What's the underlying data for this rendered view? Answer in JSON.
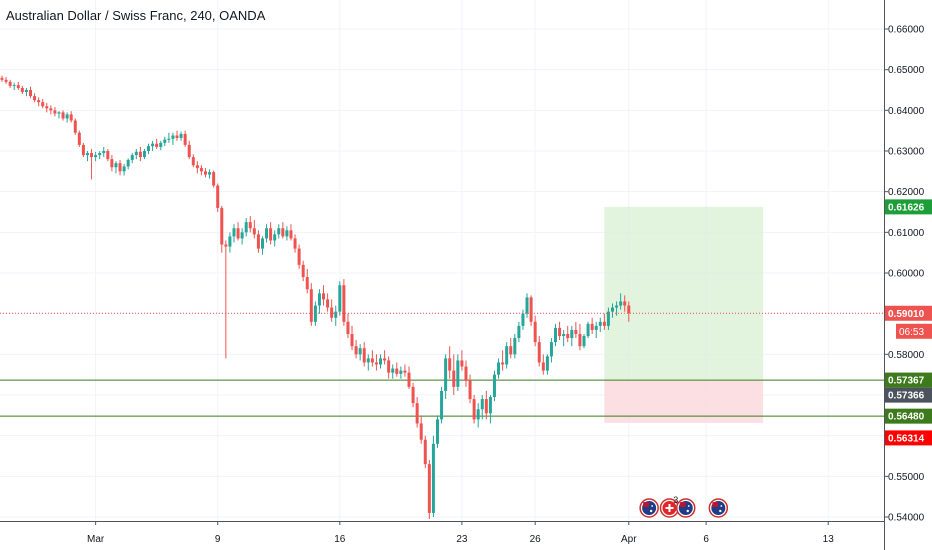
{
  "header": {
    "title": "Australian Dollar / Swiss Franc, 240, OANDA"
  },
  "colors": {
    "up": "#26a69a",
    "down": "#ef5350",
    "grid": "#f0f3fa",
    "axis_line": "#50535e",
    "last_price": "#ef5350",
    "target_tag": "#1e9e38",
    "stop_tag": "#ff0000",
    "level_line": "#3a7d1c",
    "level_tag": "#3d7a1c",
    "entry_tag": "#4c525e",
    "profit_zone": "#d8f0d3",
    "loss_zone": "#fbd9dd"
  },
  "chart_data": {
    "type": "candlestick",
    "title": "Australian Dollar / Swiss Franc, 240, OANDA",
    "symbol": "AUDCHF",
    "interval": "240",
    "source": "OANDA",
    "grid": true,
    "y_axis": {
      "position": "right",
      "range": [
        0.5395,
        0.6675
      ],
      "ticks": [
        "0.66000",
        "0.65000",
        "0.64000",
        "0.63000",
        "0.62000",
        "0.61000",
        "0.60000",
        "0.59000",
        "0.58000",
        "0.57000",
        "0.56000",
        "0.55000",
        "0.54000"
      ]
    },
    "x_axis": {
      "ticks": [
        {
          "label": "Mar",
          "bar": 23
        },
        {
          "label": "9",
          "bar": 53
        },
        {
          "label": "16",
          "bar": 83
        },
        {
          "label": "23",
          "bar": 113
        },
        {
          "label": "26",
          "bar": 131
        },
        {
          "label": "Apr",
          "bar": 154
        },
        {
          "label": "6",
          "bar": 173
        },
        {
          "label": "13",
          "bar": 203
        }
      ],
      "bar_count_visible": 226
    },
    "candles": [
      [
        0.648,
        0.6485,
        0.647,
        0.6475
      ],
      [
        0.6475,
        0.6482,
        0.6465,
        0.647
      ],
      [
        0.647,
        0.6475,
        0.6455,
        0.646
      ],
      [
        0.646,
        0.6468,
        0.645,
        0.6462
      ],
      [
        0.6462,
        0.647,
        0.645,
        0.6455
      ],
      [
        0.6455,
        0.646,
        0.644,
        0.6445
      ],
      [
        0.6445,
        0.6455,
        0.6435,
        0.645
      ],
      [
        0.645,
        0.6458,
        0.643,
        0.6435
      ],
      [
        0.6435,
        0.6442,
        0.642,
        0.6425
      ],
      [
        0.6425,
        0.6432,
        0.641,
        0.642
      ],
      [
        0.642,
        0.6428,
        0.6405,
        0.641
      ],
      [
        0.641,
        0.6418,
        0.6395,
        0.6405
      ],
      [
        0.6405,
        0.6412,
        0.639,
        0.64
      ],
      [
        0.64,
        0.6408,
        0.6385,
        0.6392
      ],
      [
        0.6392,
        0.6398,
        0.638,
        0.6395
      ],
      [
        0.6395,
        0.64,
        0.6375,
        0.638
      ],
      [
        0.638,
        0.6395,
        0.637,
        0.639
      ],
      [
        0.639,
        0.6398,
        0.637,
        0.6375
      ],
      [
        0.6375,
        0.638,
        0.634,
        0.6345
      ],
      [
        0.6345,
        0.635,
        0.631,
        0.6315
      ],
      [
        0.6315,
        0.632,
        0.6285,
        0.629
      ],
      [
        0.629,
        0.63,
        0.6275,
        0.6295
      ],
      [
        0.6295,
        0.6305,
        0.623,
        0.6285
      ],
      [
        0.6285,
        0.6298,
        0.6275,
        0.629
      ],
      [
        0.629,
        0.63,
        0.628,
        0.6295
      ],
      [
        0.6295,
        0.631,
        0.6285,
        0.63
      ],
      [
        0.63,
        0.6305,
        0.6275,
        0.628
      ],
      [
        0.628,
        0.629,
        0.625,
        0.626
      ],
      [
        0.626,
        0.6275,
        0.6245,
        0.627
      ],
      [
        0.627,
        0.6278,
        0.624,
        0.625
      ],
      [
        0.625,
        0.6268,
        0.624,
        0.6262
      ],
      [
        0.6262,
        0.6282,
        0.6255,
        0.6278
      ],
      [
        0.6278,
        0.6295,
        0.627,
        0.629
      ],
      [
        0.629,
        0.6305,
        0.628,
        0.6298
      ],
      [
        0.6298,
        0.631,
        0.6275,
        0.6285
      ],
      [
        0.6285,
        0.6305,
        0.628,
        0.63
      ],
      [
        0.63,
        0.6318,
        0.6292,
        0.6312
      ],
      [
        0.6312,
        0.6325,
        0.63,
        0.6318
      ],
      [
        0.6318,
        0.633,
        0.6305,
        0.631
      ],
      [
        0.631,
        0.6325,
        0.6302,
        0.632
      ],
      [
        0.632,
        0.6335,
        0.6312,
        0.6328
      ],
      [
        0.6328,
        0.6345,
        0.632,
        0.633
      ],
      [
        0.633,
        0.6345,
        0.6315,
        0.6338
      ],
      [
        0.6338,
        0.635,
        0.6325,
        0.6332
      ],
      [
        0.6332,
        0.6348,
        0.6325,
        0.6342
      ],
      [
        0.6342,
        0.635,
        0.631,
        0.6315
      ],
      [
        0.6315,
        0.6325,
        0.628,
        0.6285
      ],
      [
        0.6285,
        0.6292,
        0.626,
        0.6265
      ],
      [
        0.6265,
        0.6275,
        0.6245,
        0.6258
      ],
      [
        0.6258,
        0.6265,
        0.624,
        0.625
      ],
      [
        0.625,
        0.6258,
        0.6235,
        0.6242
      ],
      [
        0.6242,
        0.6255,
        0.6232,
        0.6248
      ],
      [
        0.6248,
        0.6252,
        0.621,
        0.6215
      ],
      [
        0.6215,
        0.622,
        0.615,
        0.616
      ],
      [
        0.616,
        0.6165,
        0.605,
        0.607
      ],
      [
        0.607,
        0.608,
        0.579,
        0.6065
      ],
      [
        0.6065,
        0.61,
        0.605,
        0.609
      ],
      [
        0.609,
        0.612,
        0.6075,
        0.611
      ],
      [
        0.611,
        0.6125,
        0.608,
        0.6085
      ],
      [
        0.6085,
        0.611,
        0.607,
        0.61
      ],
      [
        0.61,
        0.6135,
        0.609,
        0.6125
      ],
      [
        0.6125,
        0.614,
        0.61,
        0.611
      ],
      [
        0.611,
        0.613,
        0.6085,
        0.6095
      ],
      [
        0.6095,
        0.6105,
        0.605,
        0.606
      ],
      [
        0.606,
        0.609,
        0.6045,
        0.6085
      ],
      [
        0.6085,
        0.612,
        0.6075,
        0.611
      ],
      [
        0.611,
        0.6125,
        0.607,
        0.608
      ],
      [
        0.608,
        0.6105,
        0.6065,
        0.6095
      ],
      [
        0.6095,
        0.612,
        0.6085,
        0.611
      ],
      [
        0.611,
        0.6125,
        0.6085,
        0.609
      ],
      [
        0.609,
        0.6115,
        0.608,
        0.6105
      ],
      [
        0.6105,
        0.612,
        0.608,
        0.6085
      ],
      [
        0.6085,
        0.6095,
        0.605,
        0.606
      ],
      [
        0.606,
        0.607,
        0.601,
        0.602
      ],
      [
        0.602,
        0.603,
        0.598,
        0.599
      ],
      [
        0.599,
        0.601,
        0.595,
        0.596
      ],
      [
        0.596,
        0.5975,
        0.587,
        0.588
      ],
      [
        0.588,
        0.593,
        0.587,
        0.592
      ],
      [
        0.592,
        0.596,
        0.59,
        0.595
      ],
      [
        0.595,
        0.597,
        0.592,
        0.5935
      ],
      [
        0.5935,
        0.595,
        0.5905,
        0.5915
      ],
      [
        0.5915,
        0.5935,
        0.588,
        0.589
      ],
      [
        0.589,
        0.592,
        0.587,
        0.5905
      ],
      [
        0.5905,
        0.598,
        0.5895,
        0.597
      ],
      [
        0.597,
        0.5985,
        0.587,
        0.588
      ],
      [
        0.588,
        0.59,
        0.584,
        0.585
      ],
      [
        0.585,
        0.587,
        0.581,
        0.582
      ],
      [
        0.582,
        0.5835,
        0.579,
        0.58
      ],
      [
        0.58,
        0.5825,
        0.5785,
        0.5815
      ],
      [
        0.5815,
        0.583,
        0.577,
        0.578
      ],
      [
        0.578,
        0.58,
        0.576,
        0.579
      ],
      [
        0.579,
        0.581,
        0.577,
        0.578
      ],
      [
        0.578,
        0.58,
        0.576,
        0.5775
      ],
      [
        0.5775,
        0.58,
        0.5765,
        0.579
      ],
      [
        0.579,
        0.581,
        0.5775,
        0.5785
      ],
      [
        0.5785,
        0.5795,
        0.574,
        0.5755
      ],
      [
        0.5755,
        0.5775,
        0.574,
        0.5765
      ],
      [
        0.5765,
        0.578,
        0.5745,
        0.5752
      ],
      [
        0.5752,
        0.577,
        0.574,
        0.576
      ],
      [
        0.576,
        0.5775,
        0.5745,
        0.5755
      ],
      [
        0.5755,
        0.577,
        0.5715,
        0.572
      ],
      [
        0.572,
        0.573,
        0.567,
        0.568
      ],
      [
        0.568,
        0.5695,
        0.562,
        0.563
      ],
      [
        0.563,
        0.565,
        0.558,
        0.559
      ],
      [
        0.559,
        0.56,
        0.552,
        0.553
      ],
      [
        0.553,
        0.554,
        0.5395,
        0.541
      ],
      [
        0.541,
        0.56,
        0.54,
        0.558
      ],
      [
        0.558,
        0.565,
        0.557,
        0.564
      ],
      [
        0.564,
        0.572,
        0.563,
        0.571
      ],
      [
        0.571,
        0.58,
        0.569,
        0.579
      ],
      [
        0.579,
        0.582,
        0.574,
        0.576
      ],
      [
        0.576,
        0.58,
        0.57,
        0.572
      ],
      [
        0.572,
        0.58,
        0.571,
        0.5785
      ],
      [
        0.5785,
        0.581,
        0.576,
        0.577
      ],
      [
        0.577,
        0.5785,
        0.572,
        0.5735
      ],
      [
        0.5735,
        0.575,
        0.568,
        0.569
      ],
      [
        0.569,
        0.57,
        0.563,
        0.564
      ],
      [
        0.564,
        0.568,
        0.562,
        0.5665
      ],
      [
        0.5665,
        0.57,
        0.564,
        0.569
      ],
      [
        0.569,
        0.571,
        0.564,
        0.5655
      ],
      [
        0.5655,
        0.57,
        0.563,
        0.5695
      ],
      [
        0.5695,
        0.576,
        0.5685,
        0.575
      ],
      [
        0.575,
        0.579,
        0.574,
        0.578
      ],
      [
        0.578,
        0.581,
        0.576,
        0.5775
      ],
      [
        0.5775,
        0.583,
        0.5765,
        0.582
      ],
      [
        0.582,
        0.584,
        0.579,
        0.58
      ],
      [
        0.58,
        0.585,
        0.579,
        0.584
      ],
      [
        0.584,
        0.588,
        0.583,
        0.587
      ],
      [
        0.587,
        0.591,
        0.586,
        0.59
      ],
      [
        0.59,
        0.595,
        0.589,
        0.594
      ],
      [
        0.594,
        0.5945,
        0.587,
        0.588
      ],
      [
        0.588,
        0.5895,
        0.582,
        0.583
      ],
      [
        0.583,
        0.5845,
        0.577,
        0.578
      ],
      [
        0.578,
        0.58,
        0.575,
        0.576
      ],
      [
        0.576,
        0.58,
        0.575,
        0.5795
      ],
      [
        0.5795,
        0.584,
        0.578,
        0.583
      ],
      [
        0.583,
        0.5875,
        0.582,
        0.5865
      ],
      [
        0.5865,
        0.588,
        0.5835,
        0.5845
      ],
      [
        0.5845,
        0.586,
        0.582,
        0.585
      ],
      [
        0.585,
        0.587,
        0.583,
        0.584
      ],
      [
        0.584,
        0.587,
        0.582,
        0.586
      ],
      [
        0.586,
        0.588,
        0.584,
        0.585
      ],
      [
        0.585,
        0.5875,
        0.581,
        0.582
      ],
      [
        0.582,
        0.585,
        0.5815,
        0.5845
      ],
      [
        0.5845,
        0.588,
        0.584,
        0.5875
      ],
      [
        0.5875,
        0.589,
        0.585,
        0.586
      ],
      [
        0.586,
        0.588,
        0.584,
        0.587
      ],
      [
        0.587,
        0.589,
        0.5855,
        0.588
      ],
      [
        0.588,
        0.59,
        0.586,
        0.587
      ],
      [
        0.587,
        0.5915,
        0.586,
        0.5905
      ],
      [
        0.5905,
        0.5925,
        0.589,
        0.5915
      ],
      [
        0.5915,
        0.593,
        0.5895,
        0.592
      ],
      [
        0.592,
        0.595,
        0.591,
        0.593
      ],
      [
        0.593,
        0.5945,
        0.5905,
        0.592
      ],
      [
        0.592,
        0.593,
        0.588,
        0.5901
      ]
    ],
    "annotations": {
      "last_price": {
        "value": 0.5901,
        "label": "0.59010",
        "countdown": "06:53"
      },
      "position_box": {
        "type": "long",
        "entry": 0.57366,
        "target": 0.61626,
        "stop": 0.56314,
        "start_bar": 148,
        "end_bar": 187
      },
      "levels": [
        {
          "value": 0.57367,
          "label": "0.57367"
        },
        {
          "value": 0.5648,
          "label": "0.56480"
        }
      ],
      "price_tags": [
        {
          "value": 0.61626,
          "label": "0.61626",
          "role": "target"
        },
        {
          "value": 0.5901,
          "label": "0.59010",
          "role": "last"
        },
        {
          "value": 0.57367,
          "label": "0.57367",
          "role": "level"
        },
        {
          "value": 0.57366,
          "label": "0.57366",
          "role": "entry"
        },
        {
          "value": 0.5648,
          "label": "0.56480",
          "role": "level"
        },
        {
          "value": 0.56314,
          "label": "0.56314",
          "role": "stop"
        }
      ],
      "event_markers": [
        {
          "bar": 159,
          "icon": "flag-au-icon"
        },
        {
          "bar": 164,
          "icon": "flag-ch-icon"
        },
        {
          "bar": 168,
          "icon": "flag-au-icon",
          "count": "3"
        },
        {
          "bar": 176,
          "icon": "flag-au-icon"
        }
      ]
    }
  }
}
